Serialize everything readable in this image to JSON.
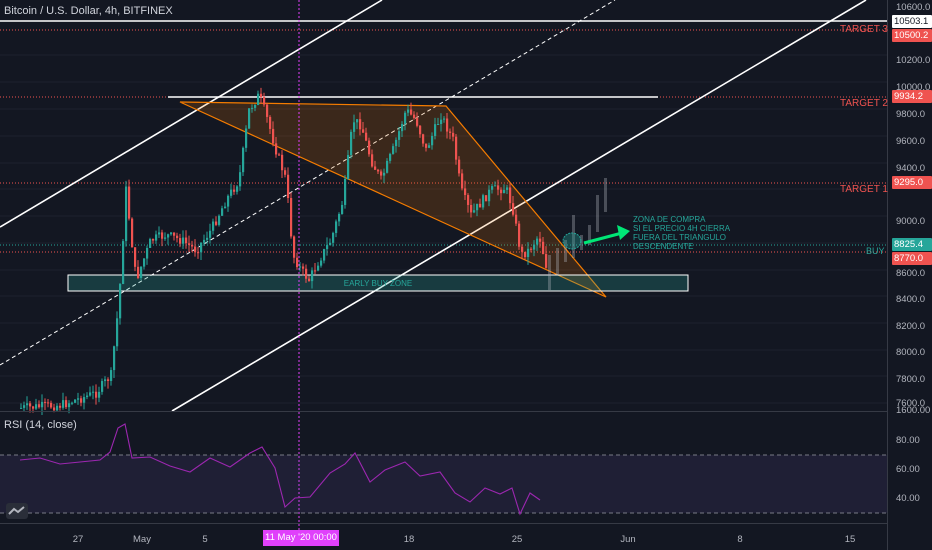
{
  "chart_title": "Bitcoin / U.S. Dollar, 4h, BITFINEX",
  "rsi_title": "RSI (14, close)",
  "price_axis": {
    "ticks": [
      "10600.0",
      "10400.0",
      "10200.0",
      "10000.0",
      "9800.0",
      "9600.0",
      "9400.0",
      "9200.0",
      "9000.0",
      "8800.0",
      "8600.0",
      "8400.0",
      "8200.0",
      "8000.0",
      "7800.0",
      "7600.0"
    ],
    "price_labels": [
      {
        "text": "10503.1",
        "bg": "#ffffff",
        "fg": "#131722"
      },
      {
        "text": "10500.2",
        "bg": "#ef5350",
        "fg": "#ffffff"
      },
      {
        "text": "9934.2",
        "bg": "#ef5350",
        "fg": "#ffffff"
      },
      {
        "text": "9295.0",
        "bg": "#ef5350",
        "fg": "#ffffff"
      },
      {
        "text": "8825.4",
        "bg": "#26a69a",
        "fg": "#ffffff"
      },
      {
        "text": "8770.0",
        "bg": "#ef5350",
        "fg": "#ffffff"
      }
    ]
  },
  "rsi_axis": {
    "ticks": [
      "1600.00",
      "80.00",
      "60.00",
      "40.00"
    ]
  },
  "targets": [
    "TARGET 3",
    "TARGET 2",
    "TARGET 1"
  ],
  "buy_label": "BUY",
  "zone_label": "EARLY BUY ZONE",
  "annotation": "ZONA DE COMPRA\nSI EL PRECIO 4H CIERRA\nFUERA DEL TRIANGULO\nDESCENDENTE",
  "time_axis": [
    "27",
    "May",
    "5",
    "18",
    "25",
    "Jun",
    "8",
    "15"
  ],
  "date_badge": "11 May '20  00:00",
  "colors": {
    "background": "#131722",
    "up": "#26a69a",
    "down": "#ef5350",
    "rsi_line": "#9c27b0",
    "rsi_band": "#7e57c2",
    "triangle": "#f57c00",
    "crosshair": "#e040fb"
  },
  "chart_data": {
    "type": "candlestick",
    "title": "Bitcoin / U.S. Dollar, 4h, BITFINEX",
    "y_range": [
      7600,
      10650
    ],
    "levels": {
      "target_3": 10500.2,
      "target_2": 9934.2,
      "target_1": 9295.0,
      "buy": 8770.0,
      "last": 8825.4,
      "top": 10503.1
    },
    "rsi": {
      "title": "RSI (14, close)",
      "band": [
        30,
        70
      ],
      "y_range": [
        25,
        95
      ]
    },
    "x_labels": [
      "27",
      "May",
      "5",
      "18",
      "25",
      "Jun",
      "8",
      "15"
    ]
  }
}
